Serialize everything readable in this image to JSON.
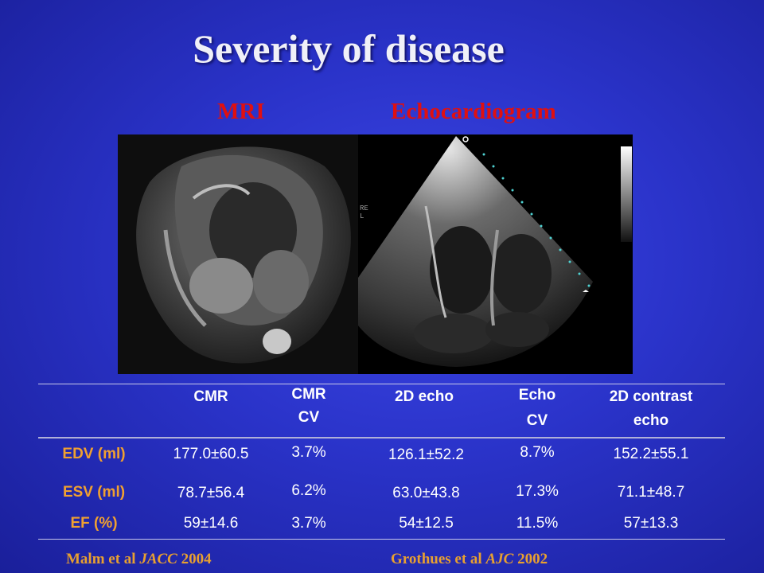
{
  "title": "Severity of disease",
  "labels": {
    "mri": "MRI",
    "echo": "Echocardiogram"
  },
  "echo_overlay_text": "RE\nL",
  "table": {
    "headers": [
      {
        "line1": "CMR",
        "line2": ""
      },
      {
        "line1": "CMR",
        "line2": "CV"
      },
      {
        "line1": "2D echo",
        "line2": ""
      },
      {
        "line1": "Echo",
        "line2": "CV"
      },
      {
        "line1": "2D contrast",
        "line2": "echo"
      }
    ],
    "rows": [
      {
        "label": "EDV (ml)",
        "cells": [
          "177.0±60.5",
          "3.7%",
          "126.1±52.2",
          "8.7%",
          "152.2±55.1"
        ]
      },
      {
        "label": "ESV (ml)",
        "cells": [
          "78.7±56.4",
          "6.2%",
          "63.0±43.8",
          "17.3%",
          "71.1±48.7"
        ]
      },
      {
        "label": "EF (%)",
        "cells": [
          "59±14.6",
          "3.7%",
          "54±12.5",
          "11.5%",
          "57±13.3"
        ]
      }
    ]
  },
  "citations": {
    "left": {
      "authors": "Malm et al ",
      "journal": "JACC",
      "year": " 2004"
    },
    "right": {
      "authors": "Grothues et al ",
      "journal": "AJC",
      "year": " 2002"
    }
  }
}
